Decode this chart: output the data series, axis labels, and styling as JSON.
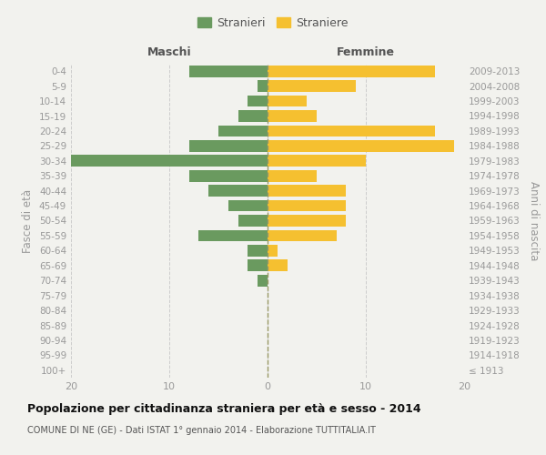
{
  "age_groups": [
    "100+",
    "95-99",
    "90-94",
    "85-89",
    "80-84",
    "75-79",
    "70-74",
    "65-69",
    "60-64",
    "55-59",
    "50-54",
    "45-49",
    "40-44",
    "35-39",
    "30-34",
    "25-29",
    "20-24",
    "15-19",
    "10-14",
    "5-9",
    "0-4"
  ],
  "birth_years": [
    "≤ 1913",
    "1914-1918",
    "1919-1923",
    "1924-1928",
    "1929-1933",
    "1934-1938",
    "1939-1943",
    "1944-1948",
    "1949-1953",
    "1954-1958",
    "1959-1963",
    "1964-1968",
    "1969-1973",
    "1974-1978",
    "1979-1983",
    "1984-1988",
    "1989-1993",
    "1994-1998",
    "1999-2003",
    "2004-2008",
    "2009-2013"
  ],
  "males": [
    0,
    0,
    0,
    0,
    0,
    0,
    1,
    2,
    2,
    7,
    3,
    4,
    6,
    8,
    20,
    8,
    5,
    3,
    2,
    1,
    8
  ],
  "females": [
    0,
    0,
    0,
    0,
    0,
    0,
    0,
    2,
    1,
    7,
    8,
    8,
    8,
    5,
    10,
    19,
    17,
    5,
    4,
    9,
    17
  ],
  "male_color": "#6a9a5f",
  "female_color": "#f5c030",
  "background_color": "#f2f2ee",
  "title": "Popolazione per cittadinanza straniera per età e sesso - 2014",
  "subtitle": "COMUNE DI NE (GE) - Dati ISTAT 1° gennaio 2014 - Elaborazione TUTTITALIA.IT",
  "header_left": "Maschi",
  "header_right": "Femmine",
  "ylabel_left": "Fasce di età",
  "ylabel_right": "Anni di nascita",
  "legend_stranieri": "Stranieri",
  "legend_straniere": "Straniere",
  "xlim": 20,
  "grid_color": "#cccccc",
  "tick_color": "#999999",
  "header_color": "#555555",
  "title_color": "#111111",
  "subtitle_color": "#555555",
  "vline_color": "#999966"
}
